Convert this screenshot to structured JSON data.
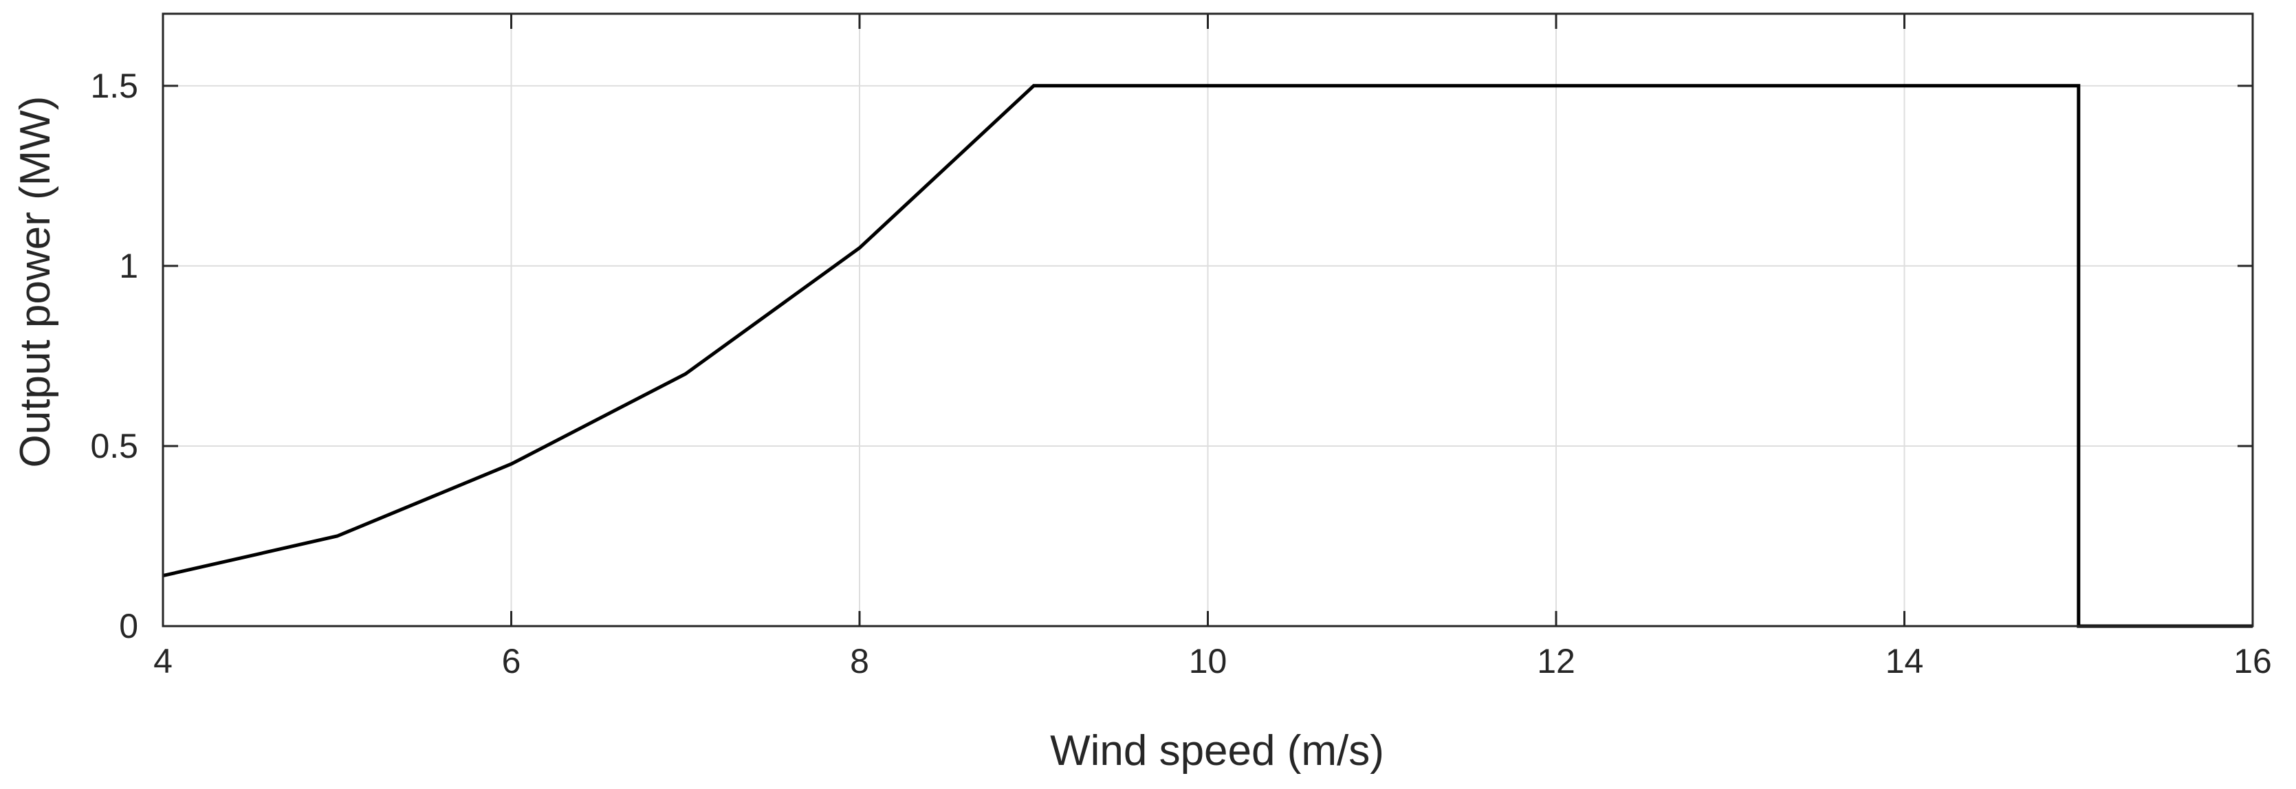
{
  "chart_data": {
    "type": "line",
    "xlabel": "Wind speed (m/s)",
    "ylabel": "Output power (MW)",
    "xlim": [
      4,
      16
    ],
    "ylim": [
      0,
      1.7
    ],
    "grid": true,
    "x_ticks": [
      4,
      6,
      8,
      10,
      12,
      14,
      16
    ],
    "x_tick_labels": [
      "4",
      "6",
      "8",
      "10",
      "12",
      "14",
      "16"
    ],
    "y_ticks": [
      0,
      0.5,
      1,
      1.5
    ],
    "y_tick_labels": [
      "0",
      "0.5",
      "1",
      "1.5"
    ],
    "line_color": "#000000",
    "grid_color": "#dedede",
    "series": [
      {
        "x": [
          4,
          5,
          6,
          7,
          8,
          9,
          10,
          11,
          12,
          13,
          14,
          15,
          15,
          16
        ],
        "y": [
          0.14,
          0.25,
          0.45,
          0.7,
          1.05,
          1.5,
          1.5,
          1.5,
          1.5,
          1.5,
          1.5,
          1.5,
          0,
          0
        ]
      }
    ]
  }
}
